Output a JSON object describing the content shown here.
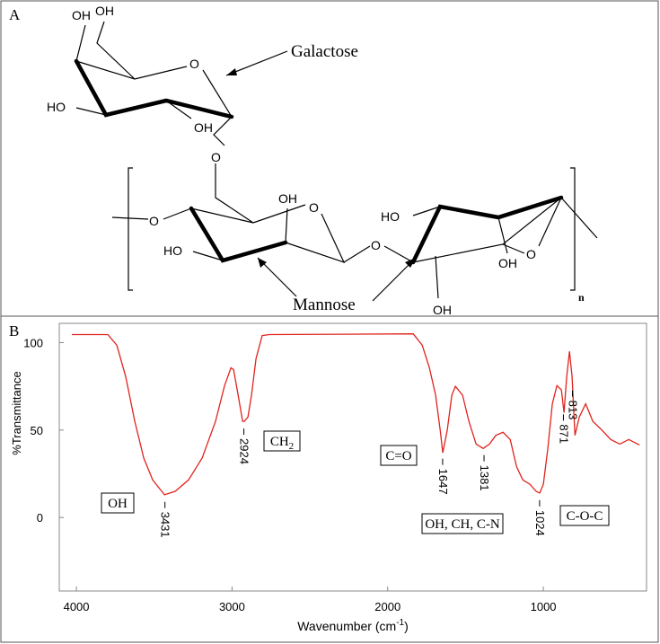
{
  "panels": [
    "A",
    "B"
  ],
  "diagram": {
    "labels": [
      "OH",
      "OH",
      "O",
      "HO",
      "OH",
      "O",
      "O",
      "OH",
      "O",
      "HO",
      "O",
      "HO",
      "OH",
      "O",
      "OH"
    ],
    "galactose": "Galactose",
    "mannose": "Mannose",
    "repeat": "n"
  },
  "chart_data": {
    "type": "line",
    "x_label": {
      "text": "Wavenumber (cm",
      "sup": "-1",
      "end": ")"
    },
    "y_label": "%Transmittance",
    "x": [
      4029,
      3798,
      3740,
      3683,
      3625,
      3567,
      3510,
      3452,
      3434,
      3365,
      3279,
      3192,
      3106,
      3048,
      3007,
      2990,
      2961,
      2932,
      2921,
      2898,
      2875,
      2846,
      2806,
      2760,
      1836,
      1778,
      1732,
      1692,
      1663,
      1646,
      1617,
      1588,
      1565,
      1519,
      1478,
      1432,
      1386,
      1346,
      1305,
      1259,
      1213,
      1172,
      1132,
      1086,
      1046,
      1023,
      1000,
      971,
      942,
      913,
      884,
      867,
      850,
      832,
      815,
      797,
      769,
      728,
      682,
      624,
      567,
      509,
      451,
      382
    ],
    "series": [
      {
        "color": "#e0231d",
        "values": [
          104.6,
          104.6,
          98.5,
          80.5,
          55,
          34,
          21.5,
          15,
          13,
          15,
          21.5,
          34,
          55,
          75.4,
          85.6,
          84.6,
          70,
          55,
          55,
          57.4,
          70,
          90.8,
          104,
          104.6,
          105,
          98.5,
          85.6,
          70,
          50,
          37,
          50,
          70,
          75,
          70,
          55,
          42,
          39.5,
          42,
          47,
          48.7,
          44.6,
          29,
          21.5,
          19,
          15,
          14,
          19,
          39.5,
          65,
          75.4,
          73,
          60,
          80.5,
          95,
          80.5,
          47,
          57.4,
          65,
          55,
          50,
          44.6,
          42,
          44.6,
          41.5
        ]
      }
    ],
    "xlim": [
      4110,
      337
    ],
    "ylim": [
      -42,
      111
    ],
    "xticks": [
      4000,
      3000,
      2000,
      1000
    ],
    "yticks": [
      100,
      50,
      0
    ],
    "peaks": [
      3431,
      2924,
      1647,
      1381,
      1024,
      871,
      813
    ],
    "group_labels": [
      {
        "text": "OH"
      },
      {
        "text": "CH",
        "sub": "2"
      },
      {
        "text": "C=O"
      },
      {
        "text": "OH, CH, C-N"
      },
      {
        "text": "C-O-C"
      }
    ]
  }
}
